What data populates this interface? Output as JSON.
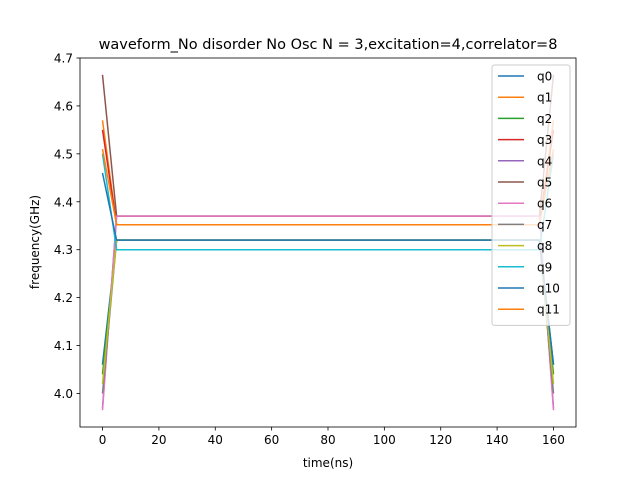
{
  "chart_data": {
    "type": "line",
    "title": "waveform_No disorder No Osc N =  3,excitation=4,correlator=8",
    "xlabel": "time(ns)",
    "ylabel": "frequency(GHz)",
    "xlim": [
      -8,
      168
    ],
    "ylim": [
      3.93,
      4.7
    ],
    "xticks": [
      0,
      20,
      40,
      60,
      80,
      100,
      120,
      140,
      160
    ],
    "yticks": [
      4.0,
      4.1,
      4.2,
      4.3,
      4.4,
      4.5,
      4.6,
      4.7
    ],
    "ytick_labels": [
      "4.0",
      "4.1",
      "4.2",
      "4.3",
      "4.4",
      "4.5",
      "4.6",
      "4.7"
    ],
    "grid": false,
    "legend_position": "top-right",
    "series": [
      {
        "name": "q0",
        "color": "#1f77b4",
        "x": [
          0,
          5,
          155,
          160
        ],
        "y": [
          4.06,
          4.32,
          4.32,
          4.06
        ]
      },
      {
        "name": "q1",
        "color": "#ff7f0e",
        "x": [
          0,
          5,
          155,
          160
        ],
        "y": [
          4.57,
          4.352,
          4.352,
          4.57
        ]
      },
      {
        "name": "q2",
        "color": "#2ca02c",
        "x": [
          0,
          5,
          155,
          160
        ],
        "y": [
          4.04,
          4.32,
          4.32,
          4.04
        ]
      },
      {
        "name": "q3",
        "color": "#d62728",
        "x": [
          0,
          5,
          155,
          160
        ],
        "y": [
          4.55,
          4.352,
          4.352,
          4.55
        ]
      },
      {
        "name": "q4",
        "color": "#9467bd",
        "x": [
          0,
          5,
          155,
          160
        ],
        "y": [
          3.97,
          4.37,
          4.37,
          3.97
        ]
      },
      {
        "name": "q5",
        "color": "#8c564b",
        "x": [
          0,
          5,
          155,
          160
        ],
        "y": [
          4.665,
          4.37,
          4.37,
          4.665
        ]
      },
      {
        "name": "q6",
        "color": "#e377c2",
        "x": [
          0,
          5,
          155,
          160
        ],
        "y": [
          3.965,
          4.37,
          4.37,
          3.965
        ]
      },
      {
        "name": "q7",
        "color": "#7f7f7f",
        "x": [
          0,
          5,
          155,
          160
        ],
        "y": [
          4.0,
          4.32,
          4.32,
          4.0
        ]
      },
      {
        "name": "q8",
        "color": "#bcbd22",
        "x": [
          0,
          5,
          155,
          160
        ],
        "y": [
          4.02,
          4.32,
          4.32,
          4.02
        ]
      },
      {
        "name": "q9",
        "color": "#17becf",
        "x": [
          0,
          5,
          155,
          160
        ],
        "y": [
          4.5,
          4.3,
          4.3,
          4.5
        ]
      },
      {
        "name": "q10",
        "color": "#1f77b4",
        "x": [
          0,
          5,
          155,
          160
        ],
        "y": [
          4.46,
          4.32,
          4.32,
          4.06
        ]
      },
      {
        "name": "q11",
        "color": "#ff7f0e",
        "x": [
          0,
          5,
          155,
          160
        ],
        "y": [
          4.51,
          4.352,
          4.352,
          4.51
        ]
      }
    ]
  }
}
